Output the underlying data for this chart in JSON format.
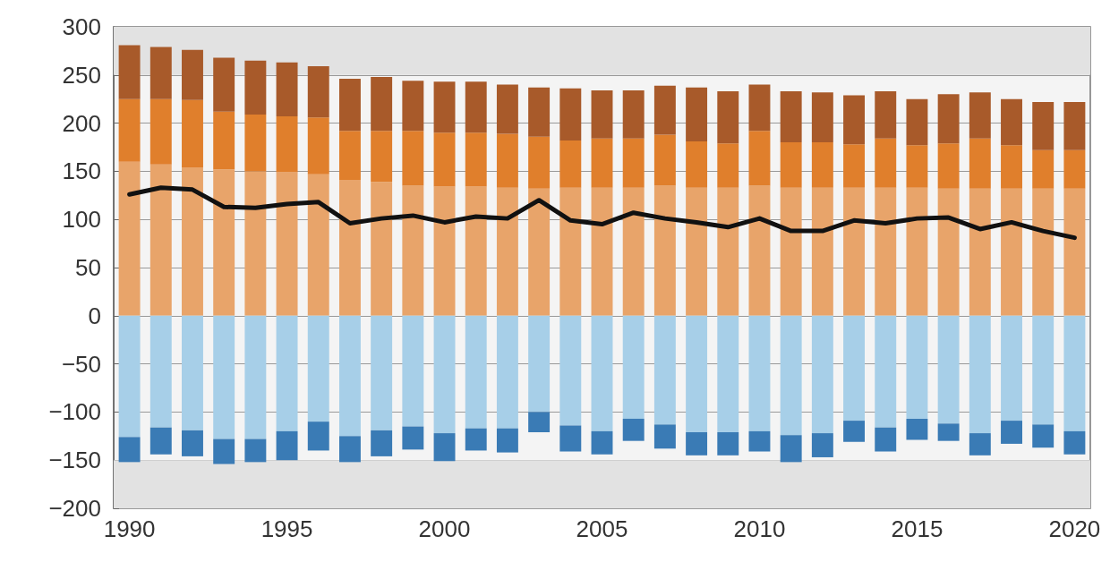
{
  "chart_data": {
    "type": "bar",
    "stacked": true,
    "categories": [
      "1990",
      null,
      null,
      null,
      null,
      "1995",
      null,
      null,
      null,
      null,
      "2000",
      null,
      null,
      null,
      null,
      "2005",
      null,
      null,
      null,
      null,
      "2010",
      null,
      null,
      null,
      null,
      "2015",
      null,
      null,
      null,
      null,
      "2020"
    ],
    "series": [
      {
        "color": "#e8a46a",
        "values": [
          160,
          157,
          154,
          152,
          150,
          149,
          147,
          141,
          139,
          135,
          134,
          134,
          133,
          132,
          133,
          133,
          133,
          135,
          133,
          133,
          135,
          133,
          133,
          133,
          133,
          133,
          132,
          132,
          132,
          132,
          132
        ]
      },
      {
        "color": "#e07f2c",
        "values": [
          65,
          68,
          70,
          60,
          59,
          58,
          59,
          51,
          53,
          57,
          56,
          56,
          56,
          54,
          49,
          51,
          51,
          53,
          48,
          46,
          57,
          47,
          47,
          45,
          51,
          44,
          47,
          52,
          45,
          40,
          40
        ]
      },
      {
        "color": "#a85a2a",
        "values": [
          56,
          54,
          52,
          56,
          56,
          56,
          53,
          54,
          56,
          52,
          53,
          53,
          51,
          51,
          54,
          50,
          50,
          51,
          56,
          54,
          48,
          53,
          52,
          51,
          49,
          48,
          51,
          48,
          48,
          50,
          50
        ]
      },
      {
        "color": "#a7cfe8",
        "values": [
          -126,
          -116,
          -119,
          -128,
          -128,
          -120,
          -110,
          -125,
          -119,
          -115,
          -122,
          -117,
          -117,
          -100,
          -114,
          -120,
          -107,
          -113,
          -121,
          -121,
          -120,
          -124,
          -122,
          -109,
          -116,
          -107,
          -112,
          -122,
          -109,
          -113,
          -120
        ]
      },
      {
        "color": "#3a7bb5",
        "values": [
          -26,
          -28,
          -27,
          -26,
          -24,
          -30,
          -30,
          -27,
          -27,
          -24,
          -29,
          -23,
          -25,
          -21,
          -27,
          -24,
          -23,
          -25,
          -24,
          -24,
          -21,
          -28,
          -25,
          -22,
          -25,
          -22,
          -18,
          -23,
          -24,
          -24,
          -24
        ]
      },
      {
        "type": "line",
        "color": "#111111",
        "marker": "none",
        "line_style": "solid",
        "values": [
          126,
          133,
          131,
          113,
          112,
          116,
          118,
          96,
          101,
          104,
          97,
          103,
          101,
          120,
          99,
          95,
          107,
          101,
          97,
          92,
          101,
          88,
          88,
          99,
          96,
          101,
          102,
          90,
          97,
          88,
          81
        ]
      }
    ],
    "ylim": [
      -200,
      300
    ],
    "yticks": [
      -200,
      -150,
      -100,
      -50,
      0,
      50,
      100,
      150,
      200,
      250,
      300
    ],
    "bands": [
      {
        "axis": "y",
        "from": 250,
        "to": 300,
        "color": "#e2e2e2"
      },
      {
        "axis": "y",
        "from": -200,
        "to": -150,
        "color": "#e2e2e2"
      }
    ],
    "grid": "y"
  }
}
